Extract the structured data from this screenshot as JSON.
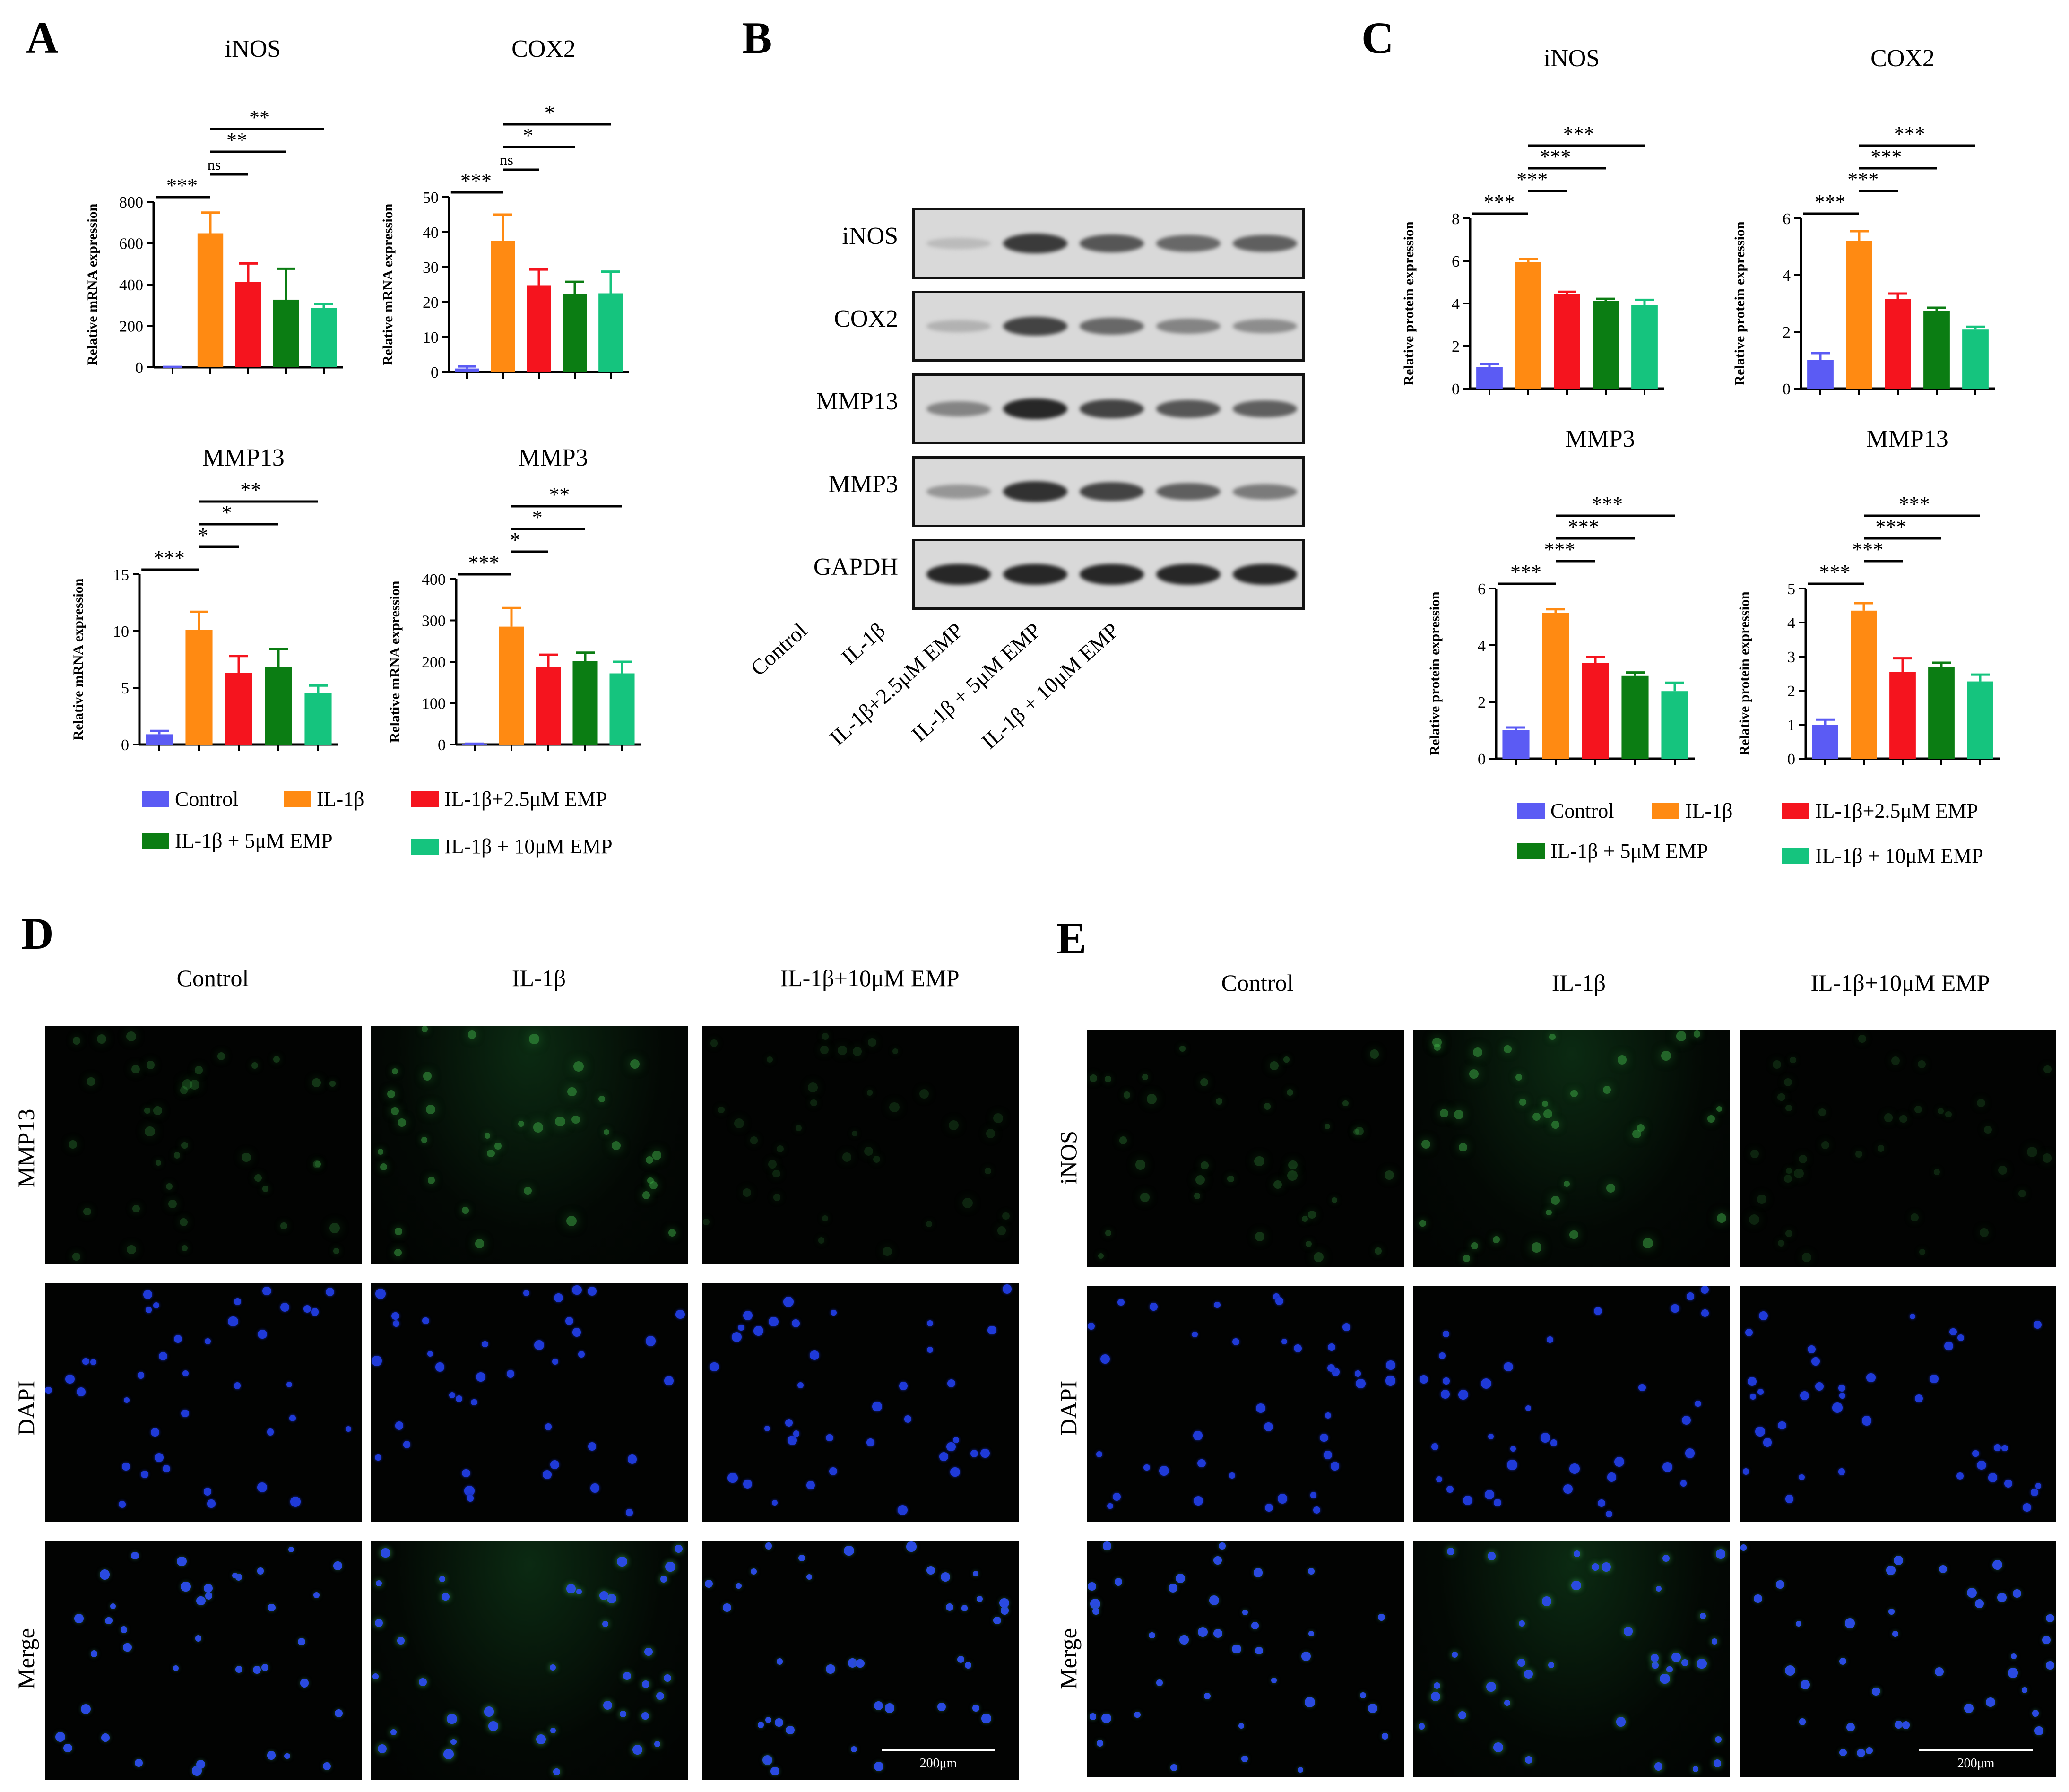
{
  "panels": {
    "A": "A",
    "B": "B",
    "C": "C",
    "D": "D",
    "E": "E"
  },
  "colors": {
    "Control": "#5b5bf4",
    "IL-1β": "#ff8a12",
    "IL-1β+2.5μM EMP": "#f5141e",
    "IL-1β + 5μM EMP": "#0b7d13",
    "IL-1β + 10μM EMP": "#15c47e"
  },
  "legend": {
    "items": [
      "Control",
      "IL-1β",
      "IL-1β+2.5μM EMP",
      "IL-1β + 5μM EMP",
      "IL-1β + 10μM EMP"
    ]
  },
  "chart_data": [
    {
      "id": "A1",
      "type": "bar",
      "title": "iNOS",
      "ylabel": "Relative mRNA expression",
      "ylim": [
        0,
        800
      ],
      "yticks": [
        0,
        200,
        400,
        600,
        800
      ],
      "categories": [
        "Control",
        "IL-1β",
        "IL-1β+2.5μM EMP",
        "IL-1β + 5μM EMP",
        "IL-1β + 10μM EMP"
      ],
      "values": [
        1,
        648,
        412,
        327,
        288
      ],
      "errors": [
        1,
        100,
        90,
        150,
        18
      ],
      "annotations": [
        {
          "from": 0,
          "to": 1,
          "label": "***"
        },
        {
          "from": 1,
          "to": 2,
          "label": "ns"
        },
        {
          "from": 1,
          "to": 3,
          "label": "**"
        },
        {
          "from": 1,
          "to": 4,
          "label": "**"
        }
      ]
    },
    {
      "id": "A2",
      "type": "bar",
      "title": "COX2",
      "ylabel": "Relative mRNA expression",
      "ylim": [
        0,
        50
      ],
      "yticks": [
        0,
        10,
        20,
        30,
        40,
        50
      ],
      "categories": [
        "Control",
        "IL-1β",
        "IL-1β+2.5μM EMP",
        "IL-1β + 5μM EMP",
        "IL-1β + 10μM EMP"
      ],
      "values": [
        1,
        37.5,
        24.8,
        22.3,
        22.5
      ],
      "errors": [
        0.6,
        7.5,
        4.5,
        3.5,
        6.2
      ],
      "annotations": [
        {
          "from": 0,
          "to": 1,
          "label": "***"
        },
        {
          "from": 1,
          "to": 2,
          "label": "ns"
        },
        {
          "from": 1,
          "to": 3,
          "label": "*"
        },
        {
          "from": 1,
          "to": 4,
          "label": "*"
        }
      ]
    },
    {
      "id": "A3",
      "type": "bar",
      "title": "MMP13",
      "ylabel": "Relative mRNA expression",
      "ylim": [
        0,
        15
      ],
      "yticks": [
        0,
        5,
        10,
        15
      ],
      "categories": [
        "Control",
        "IL-1β",
        "IL-1β+2.5μM EMP",
        "IL-1β + 5μM EMP",
        "IL-1β + 10μM EMP"
      ],
      "values": [
        0.9,
        10.1,
        6.3,
        6.8,
        4.5
      ],
      "errors": [
        0.3,
        1.6,
        1.5,
        1.6,
        0.7
      ],
      "annotations": [
        {
          "from": 0,
          "to": 1,
          "label": "***"
        },
        {
          "from": 1,
          "to": 2,
          "label": "*"
        },
        {
          "from": 1,
          "to": 3,
          "label": "*"
        },
        {
          "from": 1,
          "to": 4,
          "label": "**"
        }
      ]
    },
    {
      "id": "A4",
      "type": "bar",
      "title": "MMP3",
      "ylabel": "Relative mRNA expression",
      "ylim": [
        0,
        400
      ],
      "yticks": [
        0,
        100,
        200,
        300,
        400
      ],
      "categories": [
        "Control",
        "IL-1β",
        "IL-1β+2.5μM EMP",
        "IL-1β + 5μM EMP",
        "IL-1β + 10μM EMP"
      ],
      "values": [
        1,
        285,
        187,
        202,
        172
      ],
      "errors": [
        1,
        45,
        30,
        20,
        28
      ],
      "annotations": [
        {
          "from": 0,
          "to": 1,
          "label": "***"
        },
        {
          "from": 1,
          "to": 2,
          "label": "*"
        },
        {
          "from": 1,
          "to": 3,
          "label": "*"
        },
        {
          "from": 1,
          "to": 4,
          "label": "**"
        }
      ]
    },
    {
      "id": "C1",
      "type": "bar",
      "title": "iNOS",
      "ylabel": "Relative protein expression",
      "ylim": [
        0,
        8
      ],
      "yticks": [
        0,
        2,
        4,
        6,
        8
      ],
      "categories": [
        "Control",
        "IL-1β",
        "IL-1β+2.5μM EMP",
        "IL-1β + 5μM EMP",
        "IL-1β + 10μM EMP"
      ],
      "values": [
        1.0,
        5.95,
        4.45,
        4.12,
        3.92
      ],
      "errors": [
        0.15,
        0.15,
        0.1,
        0.1,
        0.25
      ],
      "annotations": [
        {
          "from": 0,
          "to": 1,
          "label": "***"
        },
        {
          "from": 1,
          "to": 2,
          "label": "***"
        },
        {
          "from": 1,
          "to": 3,
          "label": "***"
        },
        {
          "from": 1,
          "to": 4,
          "label": "***"
        }
      ]
    },
    {
      "id": "C2",
      "type": "bar",
      "title": "COX2",
      "ylabel": "Relative protein expression",
      "ylim": [
        0,
        6
      ],
      "yticks": [
        0,
        2,
        4,
        6
      ],
      "categories": [
        "Control",
        "IL-1β",
        "IL-1β+2.5μM EMP",
        "IL-1β + 5μM EMP",
        "IL-1β + 10μM EMP"
      ],
      "values": [
        1.0,
        5.2,
        3.15,
        2.75,
        2.08
      ],
      "errors": [
        0.25,
        0.35,
        0.2,
        0.1,
        0.1
      ],
      "annotations": [
        {
          "from": 0,
          "to": 1,
          "label": "***"
        },
        {
          "from": 1,
          "to": 2,
          "label": "***"
        },
        {
          "from": 1,
          "to": 3,
          "label": "***"
        },
        {
          "from": 1,
          "to": 4,
          "label": "***"
        }
      ]
    },
    {
      "id": "C3",
      "type": "bar",
      "title": "MMP3",
      "ylabel": "Relative protein expression",
      "ylim": [
        0,
        6
      ],
      "yticks": [
        0,
        2,
        4,
        6
      ],
      "categories": [
        "Control",
        "IL-1β",
        "IL-1β+2.5μM EMP",
        "IL-1β + 5μM EMP",
        "IL-1β + 10μM EMP"
      ],
      "values": [
        1.0,
        5.15,
        3.38,
        2.92,
        2.38
      ],
      "errors": [
        0.1,
        0.12,
        0.2,
        0.12,
        0.3
      ],
      "annotations": [
        {
          "from": 0,
          "to": 1,
          "label": "***"
        },
        {
          "from": 1,
          "to": 2,
          "label": "***"
        },
        {
          "from": 1,
          "to": 3,
          "label": "***"
        },
        {
          "from": 1,
          "to": 4,
          "label": "***"
        }
      ]
    },
    {
      "id": "C4",
      "type": "bar",
      "title": "MMP13",
      "ylabel": "Relative protein expression",
      "ylim": [
        0,
        5
      ],
      "yticks": [
        0,
        1,
        2,
        3,
        4,
        5
      ],
      "categories": [
        "Control",
        "IL-1β",
        "IL-1β+2.5μM EMP",
        "IL-1β + 5μM EMP",
        "IL-1β + 10μM EMP"
      ],
      "values": [
        1.0,
        4.35,
        2.55,
        2.7,
        2.27
      ],
      "errors": [
        0.15,
        0.22,
        0.4,
        0.12,
        0.2
      ],
      "annotations": [
        {
          "from": 0,
          "to": 1,
          "label": "***"
        },
        {
          "from": 1,
          "to": 2,
          "label": "***"
        },
        {
          "from": 1,
          "to": 3,
          "label": "***"
        },
        {
          "from": 1,
          "to": 4,
          "label": "***"
        }
      ]
    }
  ],
  "western_blot": {
    "proteins": [
      "iNOS",
      "COX2",
      "MMP13",
      "MMP3",
      "GAPDH"
    ],
    "lanes": [
      "Control",
      "IL-1β",
      "IL-1β+2.5μM EMP",
      "IL-1β + 5μM EMP",
      "IL-1β + 10μM EMP"
    ],
    "band_intensity": [
      [
        0.15,
        0.85,
        0.7,
        0.6,
        0.65
      ],
      [
        0.2,
        0.8,
        0.6,
        0.45,
        0.4
      ],
      [
        0.45,
        0.95,
        0.8,
        0.7,
        0.65
      ],
      [
        0.35,
        0.9,
        0.8,
        0.65,
        0.5
      ],
      [
        0.95,
        0.95,
        0.95,
        0.95,
        0.95
      ]
    ]
  },
  "panel_D": {
    "columns": [
      "Control",
      "IL-1β",
      "IL-1β+10μM EMP"
    ],
    "rows": [
      "MMP13",
      "DAPI",
      "Merge"
    ],
    "scale_bar": "200μm"
  },
  "panel_E": {
    "columns": [
      "Control",
      "IL-1β",
      "IL-1β+10μM EMP"
    ],
    "rows": [
      "iNOS",
      "DAPI",
      "Merge"
    ],
    "scale_bar": "200μm"
  }
}
